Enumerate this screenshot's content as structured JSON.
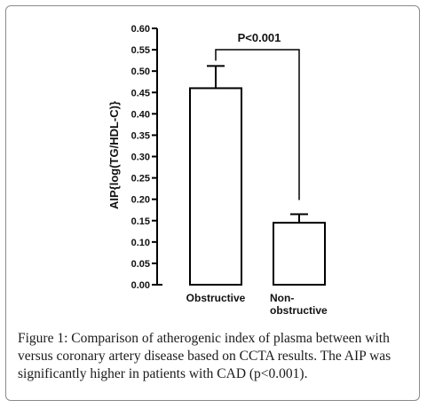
{
  "chart_data": {
    "type": "bar",
    "categories": [
      "Obstructive",
      "Non-obstructive"
    ],
    "category_lines": [
      [
        "Obstructive"
      ],
      [
        "Non-",
        "obstructive"
      ]
    ],
    "values": [
      0.46,
      0.145
    ],
    "errors": [
      0.052,
      0.02
    ],
    "ylabel": "AIP{log(TG/HDL-C)}",
    "ylim": [
      0,
      0.6
    ],
    "yticks": [
      "0.00",
      "0.05",
      "0.10",
      "0.15",
      "0.20",
      "0.25",
      "0.30",
      "0.35",
      "0.40",
      "0.45",
      "0.50",
      "0.55",
      "0.60"
    ],
    "ytick_values": [
      0,
      0.05,
      0.1,
      0.15,
      0.2,
      0.25,
      0.3,
      0.35,
      0.4,
      0.45,
      0.5,
      0.55,
      0.6
    ],
    "annotation": "P<0.001",
    "bar_fill": "#ffffff",
    "line_color": "#000000",
    "grid": false
  },
  "caption": {
    "label": "Figure 1:",
    "text": " Comparison of atherogenic index of plasma between with versus coronary artery disease based on CCTA results. The AIP was significantly higher in patients with CAD (p<0.001)."
  }
}
